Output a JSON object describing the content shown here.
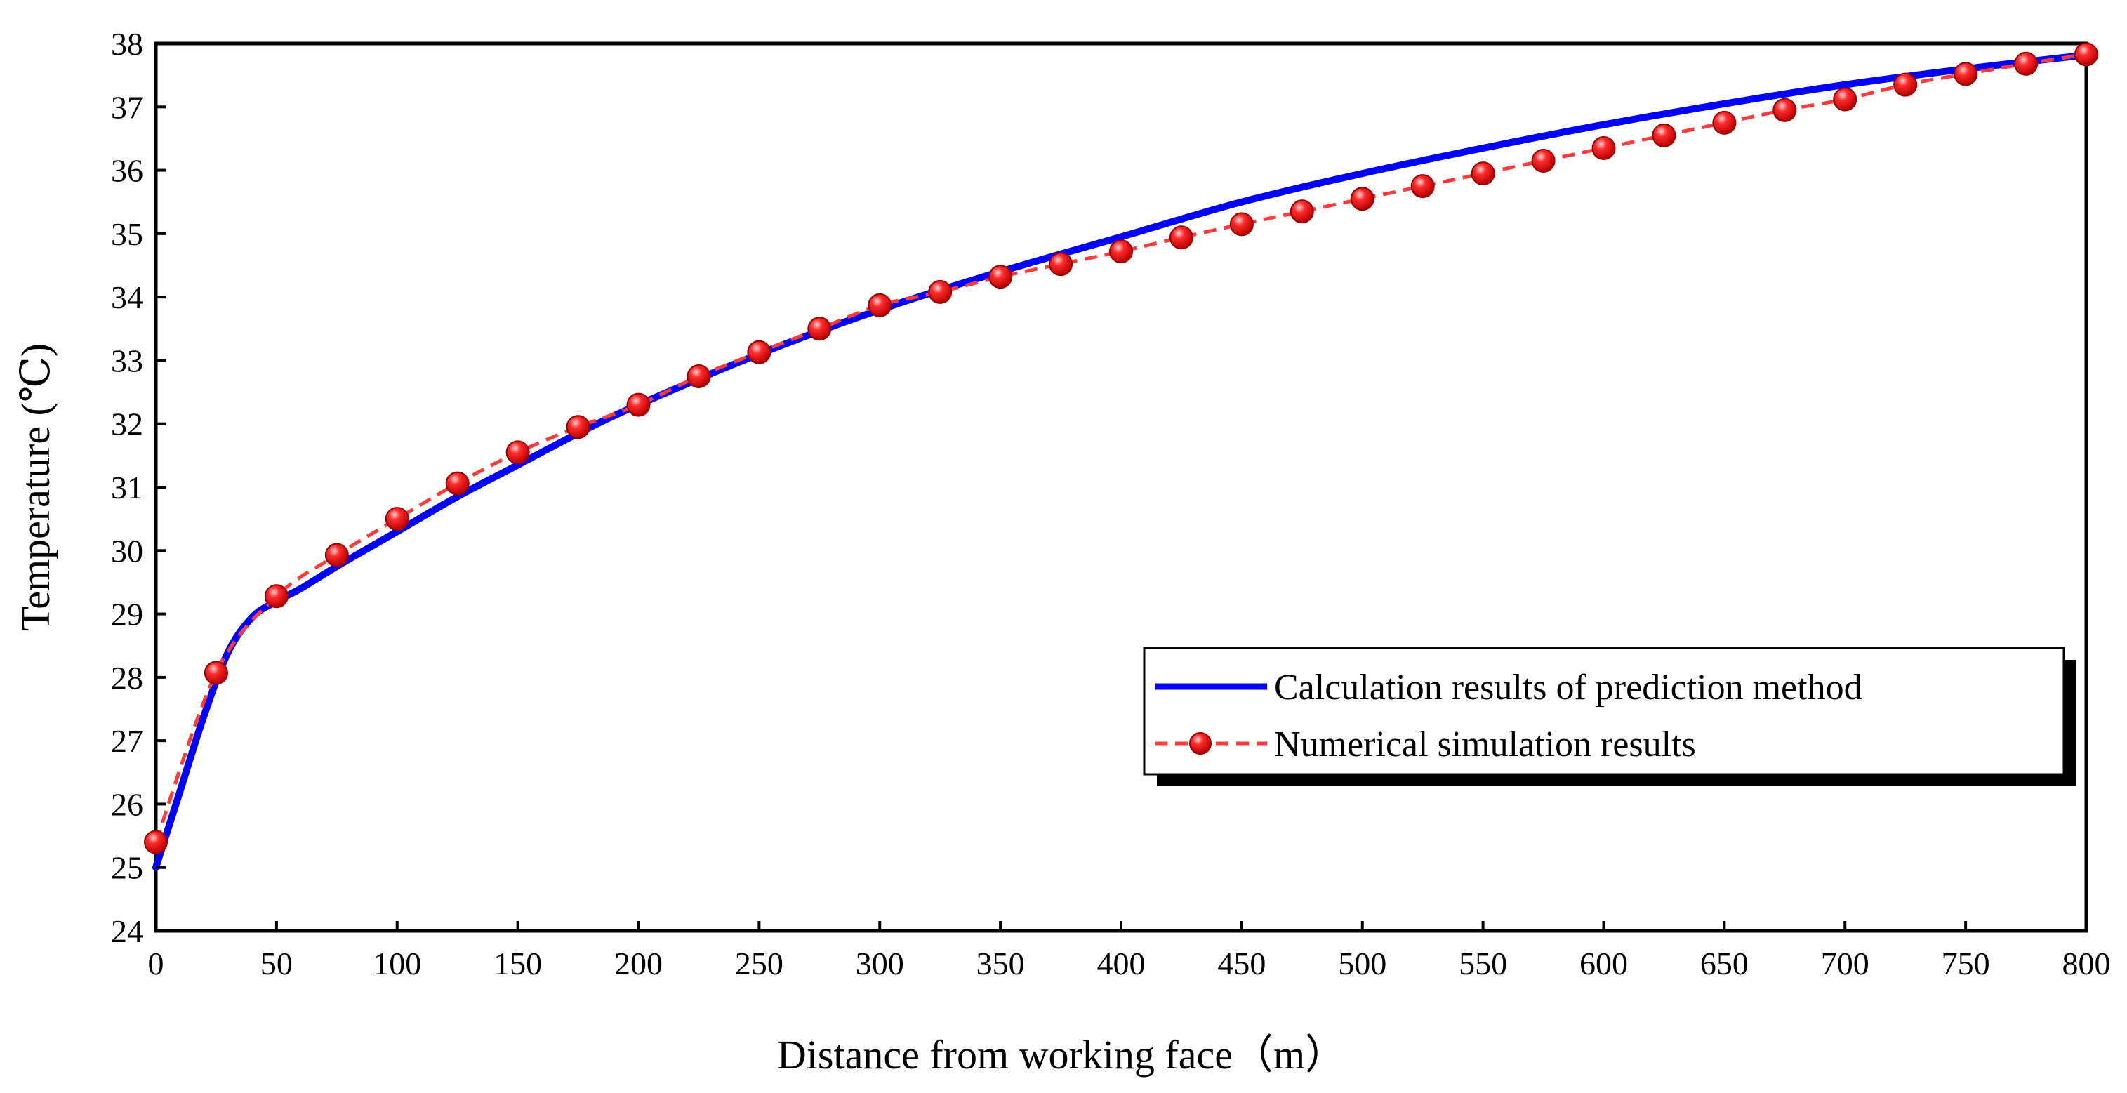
{
  "chart_data": {
    "type": "line",
    "title": "",
    "xlabel": "Distance from working face（m）",
    "ylabel": "Temperature (℃)",
    "xlim": [
      0,
      800
    ],
    "ylim": [
      24,
      38
    ],
    "xticks": [
      0,
      50,
      100,
      150,
      200,
      250,
      300,
      350,
      400,
      450,
      500,
      550,
      600,
      650,
      700,
      750,
      800
    ],
    "yticks": [
      24,
      25,
      26,
      27,
      28,
      29,
      30,
      31,
      32,
      33,
      34,
      35,
      36,
      37,
      38
    ],
    "grid": false,
    "legend_position": "right",
    "series": [
      {
        "name": "Calculation results of prediction method",
        "style": "solid-line",
        "color": "#0000ff",
        "x": [
          0,
          10,
          20,
          30,
          40,
          50,
          60,
          75,
          100,
          125,
          150,
          175,
          200,
          250,
          300,
          350,
          400,
          450,
          500,
          550,
          600,
          650,
          700,
          750,
          800
        ],
        "y": [
          25.0,
          26.2,
          27.4,
          28.4,
          28.95,
          29.2,
          29.4,
          29.75,
          30.3,
          30.85,
          31.35,
          31.85,
          32.3,
          33.1,
          33.8,
          34.4,
          34.95,
          35.5,
          35.95,
          36.35,
          36.72,
          37.05,
          37.35,
          37.6,
          37.82
        ]
      },
      {
        "name": "Numerical simulation results",
        "style": "dashed-line-with-sphere-markers",
        "color": "#ff0000",
        "x": [
          0,
          25,
          50,
          75,
          100,
          125,
          150,
          175,
          200,
          225,
          250,
          275,
          300,
          325,
          350,
          375,
          400,
          425,
          450,
          475,
          500,
          525,
          550,
          575,
          600,
          625,
          650,
          675,
          700,
          725,
          750,
          775,
          800
        ],
        "y": [
          25.4,
          28.07,
          29.28,
          29.93,
          30.5,
          31.06,
          31.55,
          31.95,
          32.3,
          32.75,
          33.13,
          33.5,
          33.87,
          34.08,
          34.32,
          34.52,
          34.72,
          34.94,
          35.15,
          35.35,
          35.55,
          35.75,
          35.95,
          36.15,
          36.35,
          36.55,
          36.75,
          36.95,
          37.12,
          37.35,
          37.52,
          37.68,
          37.83
        ]
      }
    ]
  }
}
